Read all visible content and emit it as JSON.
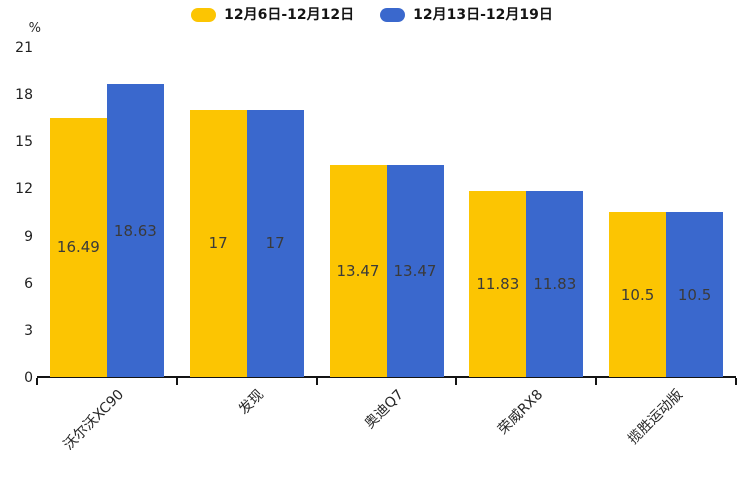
{
  "chart_data": {
    "type": "bar",
    "title": "",
    "xlabel": "",
    "ylabel": "%",
    "categories": [
      "沃尔沃XC90",
      "发现",
      "奥迪Q7",
      "荣威RX8",
      "揽胜运动版"
    ],
    "series": [
      {
        "name": "12月6日-12月12日",
        "color": "#FCC502",
        "values": [
          16.49,
          17,
          13.47,
          11.83,
          10.5
        ]
      },
      {
        "name": "12月13日-12月19日",
        "color": "#3A68CD",
        "values": [
          18.63,
          17,
          13.47,
          11.83,
          10.5
        ]
      }
    ],
    "ylim": [
      0,
      21
    ],
    "yticks": [
      0,
      3,
      6,
      9,
      12,
      15,
      18,
      21
    ],
    "grid": false,
    "legend_position": "top-center",
    "value_label_position": "inside-center",
    "colors": {
      "axis": "#141414",
      "tick_text": "#1f1f1f",
      "bar_value_text": "#3a3a3a",
      "category_text": "#262626"
    }
  }
}
